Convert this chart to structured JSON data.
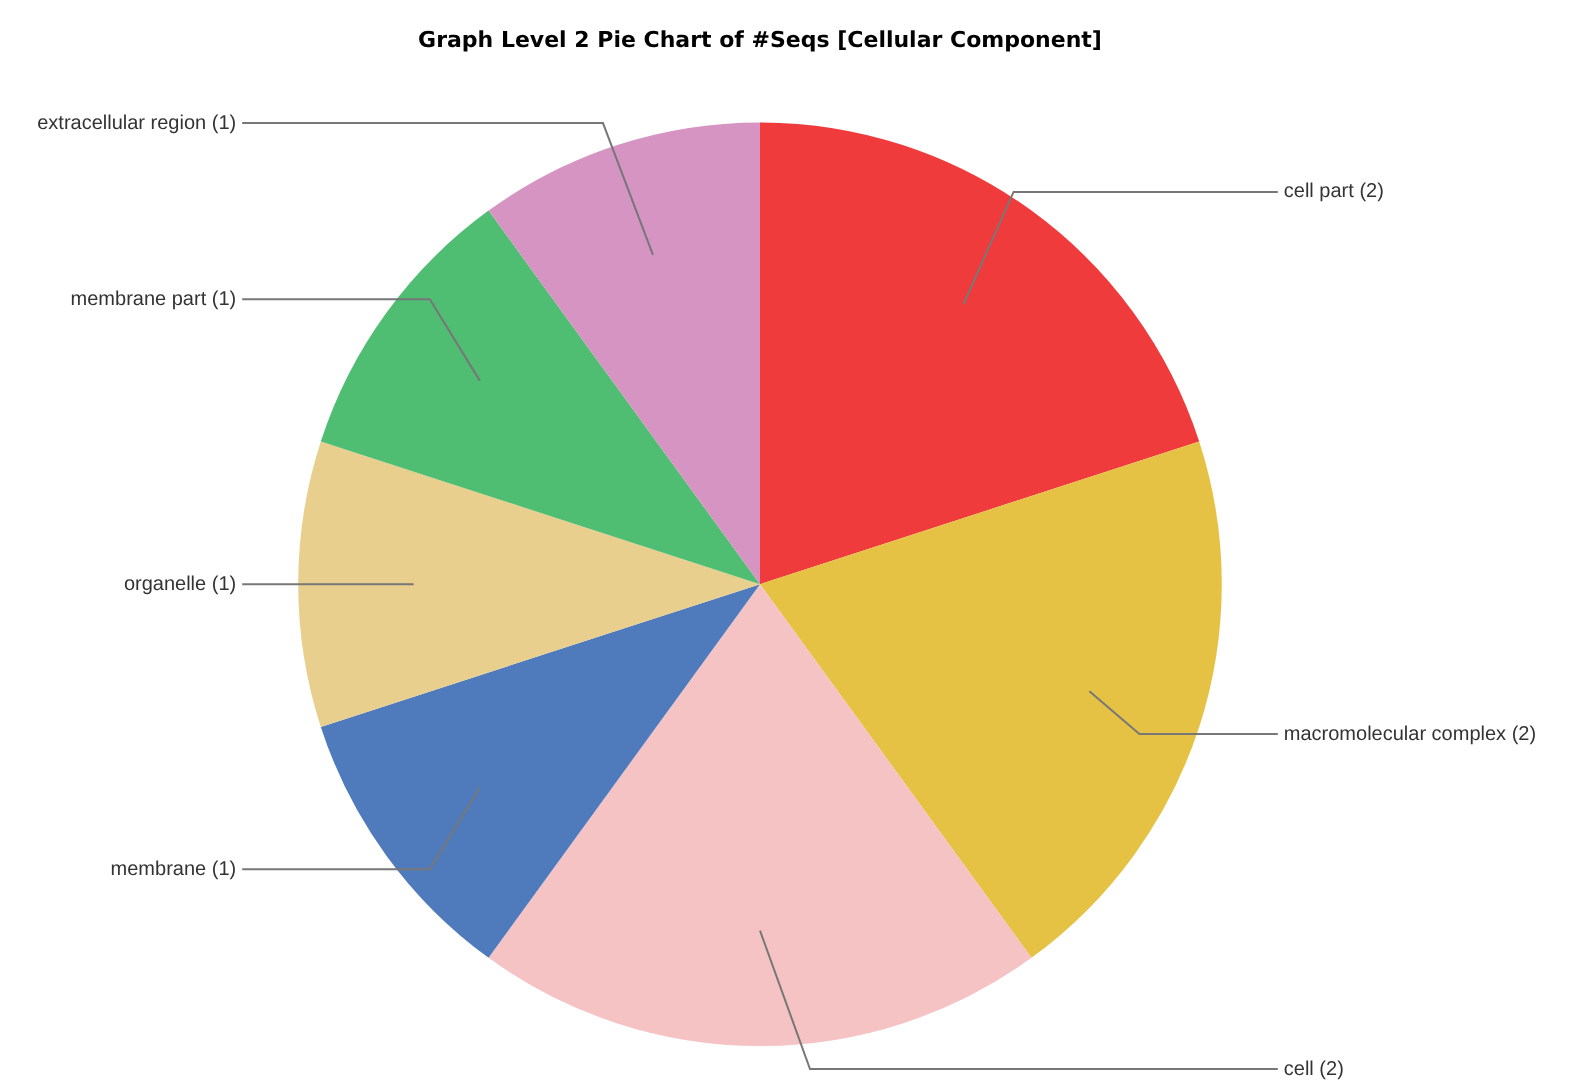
{
  "chart_data": {
    "type": "pie",
    "title": "Graph Level 2 Pie Chart of #Seqs [Cellular Component]",
    "categories": [
      "cell part",
      "macromolecular complex",
      "cell",
      "membrane",
      "organelle",
      "membrane part",
      "extracellular region"
    ],
    "values": [
      2,
      2,
      2,
      1,
      1,
      1,
      1
    ],
    "colors": [
      "#ef3b3c",
      "#e6c244",
      "#f5c3c3",
      "#4f7bbd",
      "#e8cf8e",
      "#4fbd72",
      "#d594c1"
    ],
    "value_labels": [
      "(2)",
      "(2)",
      "(2)",
      "(1)",
      "(1)",
      "(1)",
      "(1)"
    ],
    "legend": false
  }
}
